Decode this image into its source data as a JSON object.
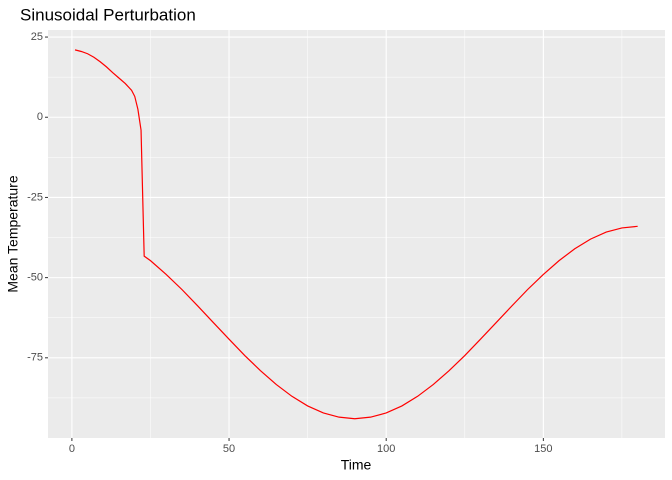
{
  "chart_data": {
    "type": "line",
    "title": "Sinusoidal Perturbation",
    "x_label": "Time",
    "y_label": "Mean Temperature",
    "x": [
      1,
      3,
      5,
      7,
      9,
      11,
      13,
      15,
      17,
      19,
      20,
      21,
      22,
      23,
      25,
      30,
      35,
      40,
      45,
      50,
      55,
      60,
      65,
      70,
      75,
      80,
      85,
      90,
      95,
      100,
      105,
      110,
      115,
      120,
      125,
      130,
      135,
      140,
      145,
      150,
      155,
      160,
      165,
      170,
      175,
      180
    ],
    "values": [
      21,
      20.5,
      19.8,
      18.7,
      17.3,
      15.7,
      13.9,
      12.2,
      10.5,
      8.4,
      6.5,
      2.5,
      -4,
      -43.3,
      -44.7,
      -49,
      -53.7,
      -58.8,
      -64,
      -69.2,
      -74.3,
      -79,
      -83.3,
      -87,
      -90,
      -92.2,
      -93.5,
      -94,
      -93.5,
      -92.2,
      -90,
      -87,
      -83.3,
      -79,
      -74.3,
      -69.2,
      -64,
      -58.8,
      -53.7,
      -49,
      -44.7,
      -41,
      -38,
      -35.8,
      -34.5,
      -34
    ],
    "color": "#ff0000",
    "xlim": [
      -7.6,
      188.7
    ],
    "xticks": [
      0,
      50,
      100,
      150
    ],
    "ylim": [
      -100,
      27.2
    ],
    "yticks": [
      -75,
      -50,
      -25,
      0,
      25
    ],
    "grid": true
  }
}
